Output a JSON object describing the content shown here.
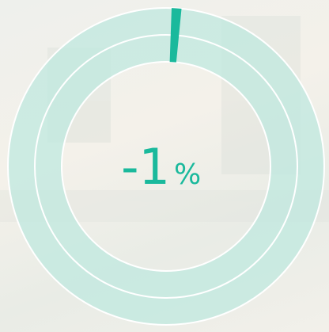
{
  "gauge": {
    "value": -1,
    "unit": "%"
  }
}
